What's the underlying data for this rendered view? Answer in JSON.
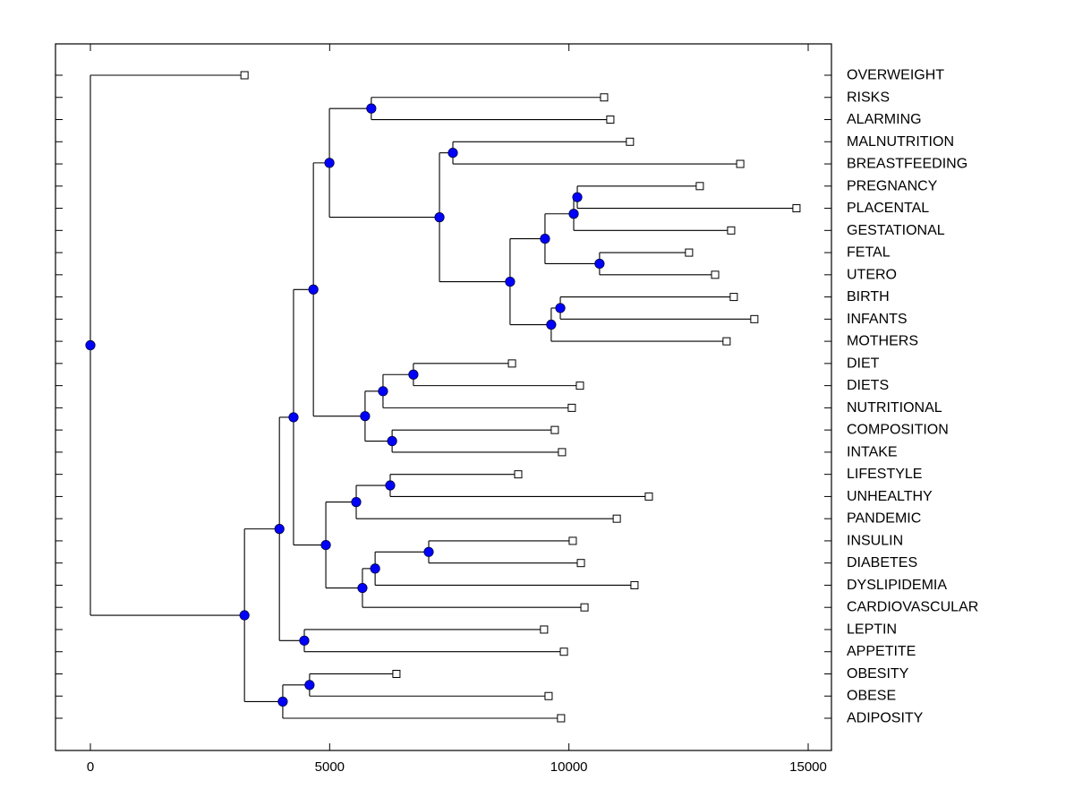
{
  "chart_data": {
    "type": "dendrogram",
    "title": "",
    "xlabel": "",
    "ylabel": "",
    "xlim": [
      -700,
      15500
    ],
    "xticks": [
      0,
      5000,
      10000,
      15000
    ],
    "xtick_labels": [
      "0",
      "5000",
      "10000",
      "15000"
    ],
    "grid": false,
    "orientation": "left-to-right, labels on right",
    "node_color": "#0000ff",
    "leaves": [
      "OVERWEIGHT",
      "RISKS",
      "ALARMING",
      "MALNUTRITION",
      "BREASTFEEDING",
      "PREGNANCY",
      "PLACENTAL",
      "GESTATIONAL",
      "FETAL",
      "UTERO",
      "BIRTH",
      "INFANTS",
      "MOTHERS",
      "DIET",
      "DIETS",
      "NUTRITIONAL",
      "COMPOSITION",
      "INTAKE",
      "LIFESTYLE",
      "UNHEALTHY",
      "PANDEMIC",
      "INSULIN",
      "DIABETES",
      "DYSLIPIDEMIA",
      "CARDIOVASCULAR",
      "LEPTIN",
      "APPETITE",
      "OBESITY",
      "OBESE",
      "ADIPOSITY"
    ],
    "tree": {
      "id": "root",
      "x": 0,
      "children": [
        {
          "leaf": "OVERWEIGHT",
          "x": 3220
        },
        {
          "id": "n_main",
          "x": 3220,
          "children": [
            {
              "id": "n_b",
              "x": 3950,
              "children": [
                {
                  "id": "n_e",
                  "x": 4245,
                  "children": [
                    {
                      "id": "n_f",
                      "x": 4660,
                      "children": [
                        {
                          "id": "n_g",
                          "x": 4995,
                          "children": [
                            {
                              "id": "n_h",
                              "x": 5870,
                              "children": [
                                {
                                  "leaf": "RISKS",
                                  "x": 10735
                                },
                                {
                                  "leaf": "ALARMING",
                                  "x": 10865
                                }
                              ]
                            },
                            {
                              "id": "n_i",
                              "x": 7295,
                              "children": [
                                {
                                  "id": "n_j",
                                  "x": 7575,
                                  "children": [
                                    {
                                      "leaf": "MALNUTRITION",
                                      "x": 11275
                                    },
                                    {
                                      "leaf": "BREASTFEEDING",
                                      "x": 13580
                                    }
                                  ]
                                },
                                {
                                  "id": "n_k",
                                  "x": 8770,
                                  "children": [
                                    {
                                      "id": "n_l",
                                      "x": 9500,
                                      "children": [
                                        {
                                          "id": "n_m",
                                          "x": 10100,
                                          "children": [
                                            {
                                              "id": "n_n",
                                              "x": 10175,
                                              "children": [
                                                {
                                                  "leaf": "PREGNANCY",
                                                  "x": 12735
                                                },
                                                {
                                                  "leaf": "PLACENTAL",
                                                  "x": 14755
                                                }
                                              ]
                                            },
                                            {
                                              "leaf": "GESTATIONAL",
                                              "x": 13390
                                            }
                                          ]
                                        },
                                        {
                                          "id": "n_o",
                                          "x": 10640,
                                          "children": [
                                            {
                                              "leaf": "FETAL",
                                              "x": 12510
                                            },
                                            {
                                              "leaf": "UTERO",
                                              "x": 13055
                                            }
                                          ]
                                        }
                                      ]
                                    },
                                    {
                                      "id": "n_p",
                                      "x": 9630,
                                      "children": [
                                        {
                                          "id": "n_q",
                                          "x": 9820,
                                          "children": [
                                            {
                                              "leaf": "BIRTH",
                                              "x": 13445
                                            },
                                            {
                                              "leaf": "INFANTS",
                                              "x": 13875
                                            }
                                          ]
                                        },
                                        {
                                          "leaf": "MOTHERS",
                                          "x": 13295
                                        }
                                      ]
                                    }
                                  ]
                                }
                              ]
                            }
                          ]
                        },
                        {
                          "id": "n_r",
                          "x": 5740,
                          "children": [
                            {
                              "id": "n_s",
                              "x": 6115,
                              "children": [
                                {
                                  "id": "n_t",
                                  "x": 6750,
                                  "children": [
                                    {
                                      "leaf": "DIET",
                                      "x": 8810
                                    },
                                    {
                                      "leaf": "DIETS",
                                      "x": 10230
                                    }
                                  ]
                                },
                                {
                                  "leaf": "NUTRITIONAL",
                                  "x": 10060
                                }
                              ]
                            },
                            {
                              "id": "n_u",
                              "x": 6305,
                              "children": [
                                {
                                  "leaf": "COMPOSITION",
                                  "x": 9705
                                },
                                {
                                  "leaf": "INTAKE",
                                  "x": 9855
                                }
                              ]
                            }
                          ]
                        }
                      ]
                    },
                    {
                      "id": "n_v",
                      "x": 4920,
                      "children": [
                        {
                          "id": "n_w",
                          "x": 5555,
                          "children": [
                            {
                              "id": "n_x",
                              "x": 6265,
                              "children": [
                                {
                                  "leaf": "LIFESTYLE",
                                  "x": 8940
                                },
                                {
                                  "leaf": "UNHEALTHY",
                                  "x": 11670
                                }
                              ]
                            },
                            {
                              "leaf": "PANDEMIC",
                              "x": 11000
                            }
                          ]
                        },
                        {
                          "id": "n_y",
                          "x": 5685,
                          "children": [
                            {
                              "id": "n_z",
                              "x": 5950,
                              "children": [
                                {
                                  "id": "n_aa",
                                  "x": 7070,
                                  "children": [
                                    {
                                      "leaf": "INSULIN",
                                      "x": 10080
                                    },
                                    {
                                      "leaf": "DIABETES",
                                      "x": 10250
                                    }
                                  ]
                                },
                                {
                                  "leaf": "DYSLIPIDEMIA",
                                  "x": 11370
                                }
                              ]
                            },
                            {
                              "leaf": "CARDIOVASCULAR",
                              "x": 10325
                            }
                          ]
                        }
                      ]
                    }
                  ]
                },
                {
                  "id": "n_ab",
                  "x": 4470,
                  "children": [
                    {
                      "leaf": "LEPTIN",
                      "x": 9480
                    },
                    {
                      "leaf": "APPETITE",
                      "x": 9895
                    }
                  ]
                }
              ]
            },
            {
              "id": "n_c",
              "x": 4020,
              "children": [
                {
                  "id": "n_d",
                  "x": 4580,
                  "children": [
                    {
                      "leaf": "OBESITY",
                      "x": 6395
                    },
                    {
                      "leaf": "OBESE",
                      "x": 9575
                    }
                  ]
                },
                {
                  "leaf": "ADIPOSITY",
                  "x": 9835
                }
              ]
            }
          ]
        }
      ]
    }
  }
}
